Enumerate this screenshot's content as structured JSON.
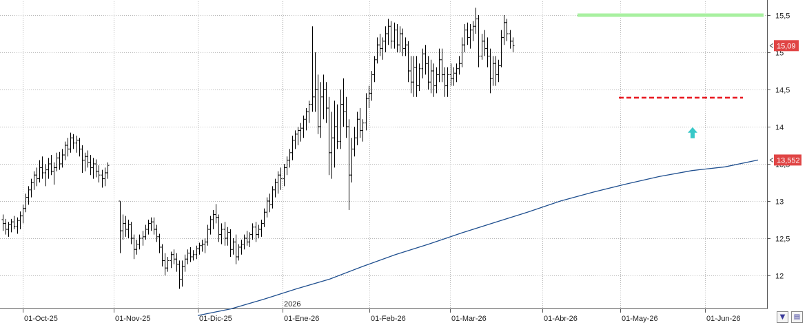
{
  "chart_data": {
    "type": "ohlc",
    "title": "",
    "xlabel": "",
    "ylabel": "",
    "ylim": [
      11.55,
      15.6
    ],
    "y_ticks": [
      12,
      12.5,
      13,
      13.5,
      14,
      14.5,
      15,
      15.5
    ],
    "y_tick_labels": [
      "12",
      "12,5",
      "13",
      "13,5",
      "14",
      "14,5",
      "15",
      "15,5"
    ],
    "x_tick_labels": [
      "01-Oct-25",
      "01-Nov-25",
      "01-Dic-25",
      "01-Ene-26",
      "01-Feb-26",
      "01-Mar-26",
      "01-Abr-26",
      "01-May-26",
      "01-Jun-26"
    ],
    "year_marker": "2026",
    "last_price_label": "15,09",
    "moving_average_label": "13,552",
    "grid": true,
    "colors": {
      "bars": "#000000",
      "moving_average": "#1f4f8f",
      "resistance": "#a8f0a0",
      "support": "#e8141c",
      "arrow": "#38c8c8",
      "badge": "#e04545",
      "grid": "#b8b8b8"
    },
    "series": [
      {
        "kind": "ohlc",
        "bars": [
          [
            12.75,
            12.82,
            12.6,
            12.7
          ],
          [
            12.7,
            12.76,
            12.55,
            12.62
          ],
          [
            12.62,
            12.72,
            12.52,
            12.68
          ],
          [
            12.68,
            12.76,
            12.58,
            12.72
          ],
          [
            12.72,
            12.8,
            12.62,
            12.66
          ],
          [
            12.66,
            12.78,
            12.56,
            12.74
          ],
          [
            12.74,
            12.86,
            12.62,
            12.8
          ],
          [
            12.8,
            12.95,
            12.7,
            12.9
          ],
          [
            12.9,
            13.1,
            12.85,
            13.05
          ],
          [
            13.05,
            13.2,
            12.95,
            13.15
          ],
          [
            13.15,
            13.3,
            13.05,
            13.25
          ],
          [
            13.25,
            13.4,
            13.15,
            13.35
          ],
          [
            13.35,
            13.45,
            13.2,
            13.3
          ],
          [
            13.3,
            13.55,
            13.25,
            13.45
          ],
          [
            13.45,
            13.6,
            13.3,
            13.38
          ],
          [
            13.38,
            13.5,
            13.2,
            13.42
          ],
          [
            13.42,
            13.58,
            13.3,
            13.5
          ],
          [
            13.5,
            13.62,
            13.35,
            13.4
          ],
          [
            13.4,
            13.52,
            13.22,
            13.45
          ],
          [
            13.45,
            13.65,
            13.4,
            13.58
          ],
          [
            13.58,
            13.66,
            13.42,
            13.5
          ],
          [
            13.5,
            13.7,
            13.45,
            13.62
          ],
          [
            13.62,
            13.8,
            13.55,
            13.75
          ],
          [
            13.75,
            13.85,
            13.6,
            13.7
          ],
          [
            13.7,
            13.92,
            13.65,
            13.85
          ],
          [
            13.85,
            13.9,
            13.7,
            13.78
          ],
          [
            13.78,
            13.88,
            13.65,
            13.82
          ],
          [
            13.82,
            13.85,
            13.6,
            13.7
          ],
          [
            13.7,
            13.75,
            13.38,
            13.55
          ],
          [
            13.55,
            13.65,
            13.4,
            13.6
          ],
          [
            13.6,
            13.68,
            13.45,
            13.52
          ],
          [
            13.52,
            13.62,
            13.35,
            13.45
          ],
          [
            13.45,
            13.58,
            13.3,
            13.5
          ],
          [
            13.5,
            13.56,
            13.32,
            13.4
          ],
          [
            13.4,
            13.48,
            13.25,
            13.35
          ],
          [
            13.35,
            13.42,
            13.18,
            13.3
          ],
          [
            13.3,
            13.45,
            13.2,
            13.38
          ],
          [
            13.38,
            13.52,
            13.3,
            13.48
          ],
          [
            13.0,
            13.0,
            12.3,
            12.6
          ],
          [
            12.6,
            12.82,
            12.48,
            12.7
          ],
          [
            12.7,
            12.8,
            12.52,
            12.62
          ],
          [
            12.62,
            12.75,
            12.5,
            12.68
          ],
          [
            12.68,
            12.72,
            12.42,
            12.5
          ],
          [
            12.5,
            12.55,
            12.22,
            12.35
          ],
          [
            12.35,
            12.48,
            12.28,
            12.42
          ],
          [
            12.42,
            12.55,
            12.35,
            12.5
          ],
          [
            12.5,
            12.6,
            12.4,
            12.52
          ],
          [
            12.52,
            12.68,
            12.48,
            12.62
          ],
          [
            12.62,
            12.75,
            12.55,
            12.7
          ],
          [
            12.7,
            12.78,
            12.6,
            12.72
          ],
          [
            12.72,
            12.78,
            12.55,
            12.62
          ],
          [
            12.62,
            12.68,
            12.45,
            12.52
          ],
          [
            12.52,
            12.56,
            12.3,
            12.38
          ],
          [
            12.38,
            12.42,
            12.12,
            12.2
          ],
          [
            12.2,
            12.3,
            12.0,
            12.1
          ],
          [
            12.1,
            12.25,
            12.05,
            12.2
          ],
          [
            12.2,
            12.32,
            12.1,
            12.28
          ],
          [
            12.28,
            12.35,
            12.15,
            12.22
          ],
          [
            12.22,
            12.3,
            12.05,
            12.15
          ],
          [
            12.15,
            12.2,
            11.82,
            11.95
          ],
          [
            11.95,
            12.2,
            11.85,
            12.12
          ],
          [
            12.12,
            12.28,
            12.05,
            12.22
          ],
          [
            12.22,
            12.35,
            12.15,
            12.3
          ],
          [
            12.3,
            12.38,
            12.18,
            12.25
          ],
          [
            12.25,
            12.34,
            12.2,
            12.28
          ],
          [
            12.28,
            12.4,
            12.22,
            12.36
          ],
          [
            12.36,
            12.44,
            12.28,
            12.4
          ],
          [
            12.4,
            12.48,
            12.32,
            12.42
          ],
          [
            12.42,
            12.5,
            12.3,
            12.45
          ],
          [
            12.45,
            12.68,
            12.4,
            12.62
          ],
          [
            12.62,
            12.8,
            12.55,
            12.75
          ],
          [
            12.75,
            12.88,
            12.62,
            12.82
          ],
          [
            12.82,
            12.96,
            12.7,
            12.78
          ],
          [
            12.78,
            12.82,
            12.45,
            12.55
          ],
          [
            12.55,
            12.7,
            12.42,
            12.62
          ],
          [
            12.62,
            12.72,
            12.4,
            12.5
          ],
          [
            12.5,
            12.65,
            12.4,
            12.58
          ],
          [
            12.58,
            12.62,
            12.25,
            12.35
          ],
          [
            12.35,
            12.5,
            12.28,
            12.45
          ],
          [
            12.45,
            12.55,
            12.15,
            12.25
          ],
          [
            12.25,
            12.42,
            12.2,
            12.38
          ],
          [
            12.38,
            12.48,
            12.28,
            12.42
          ],
          [
            12.42,
            12.55,
            12.35,
            12.5
          ],
          [
            12.5,
            12.6,
            12.4,
            12.45
          ],
          [
            12.45,
            12.58,
            12.38,
            12.55
          ],
          [
            12.55,
            12.7,
            12.48,
            12.65
          ],
          [
            12.65,
            12.72,
            12.45,
            12.55
          ],
          [
            12.55,
            12.68,
            12.5,
            12.62
          ],
          [
            12.62,
            12.75,
            12.52,
            12.7
          ],
          [
            12.7,
            12.9,
            12.65,
            12.85
          ],
          [
            12.85,
            13.05,
            12.78,
            13.0
          ],
          [
            13.0,
            13.1,
            12.85,
            12.95
          ],
          [
            12.95,
            13.2,
            12.9,
            13.15
          ],
          [
            13.15,
            13.3,
            13.05,
            13.25
          ],
          [
            13.25,
            13.4,
            13.1,
            13.35
          ],
          [
            13.35,
            13.45,
            13.15,
            13.3
          ],
          [
            13.3,
            13.5,
            13.2,
            13.45
          ],
          [
            13.45,
            13.6,
            13.35,
            13.55
          ],
          [
            13.55,
            13.7,
            13.45,
            13.65
          ],
          [
            13.65,
            13.88,
            13.55,
            13.82
          ],
          [
            13.82,
            13.95,
            13.7,
            13.9
          ],
          [
            13.9,
            14.0,
            13.75,
            13.95
          ],
          [
            13.95,
            14.05,
            13.8,
            13.98
          ],
          [
            13.98,
            14.15,
            13.85,
            14.1
          ],
          [
            14.1,
            14.25,
            13.95,
            14.2
          ],
          [
            14.2,
            14.35,
            14.05,
            14.3
          ],
          [
            14.3,
            15.35,
            14.2,
            14.4
          ],
          [
            14.4,
            15.0,
            14.2,
            14.5
          ],
          [
            14.5,
            14.7,
            13.9,
            14.0
          ],
          [
            14.0,
            14.6,
            13.85,
            14.4
          ],
          [
            14.4,
            14.7,
            14.1,
            14.5
          ],
          [
            14.5,
            14.6,
            14.05,
            14.25
          ],
          [
            14.25,
            14.4,
            13.35,
            13.65
          ],
          [
            13.65,
            14.2,
            13.3,
            13.85
          ],
          [
            13.85,
            14.35,
            13.45,
            14.0
          ],
          [
            14.0,
            14.3,
            13.7,
            13.8
          ],
          [
            13.8,
            14.5,
            13.7,
            14.3
          ],
          [
            14.3,
            14.65,
            14.0,
            14.2
          ],
          [
            14.2,
            14.4,
            13.85,
            14.0
          ],
          [
            14.0,
            14.1,
            12.88,
            13.35
          ],
          [
            13.35,
            13.85,
            13.25,
            13.7
          ],
          [
            13.7,
            14.0,
            13.6,
            13.85
          ],
          [
            13.85,
            14.2,
            13.75,
            14.1
          ],
          [
            14.1,
            14.25,
            13.85,
            13.95
          ],
          [
            13.95,
            14.1,
            13.8,
            14.05
          ],
          [
            14.05,
            14.45,
            13.95,
            14.38
          ],
          [
            14.38,
            14.55,
            14.25,
            14.45
          ],
          [
            14.45,
            14.75,
            14.35,
            14.7
          ],
          [
            14.7,
            14.95,
            14.6,
            14.9
          ],
          [
            14.9,
            15.2,
            14.85,
            15.1
          ],
          [
            15.1,
            15.25,
            14.95,
            15.05
          ],
          [
            15.05,
            15.2,
            14.9,
            15.15
          ],
          [
            15.15,
            15.35,
            15.0,
            15.25
          ],
          [
            15.25,
            15.45,
            15.1,
            15.35
          ],
          [
            15.35,
            15.42,
            15.05,
            15.15
          ],
          [
            15.15,
            15.4,
            15.05,
            15.3
          ],
          [
            15.3,
            15.38,
            15.0,
            15.1
          ],
          [
            15.1,
            15.35,
            15.0,
            15.25
          ],
          [
            15.25,
            15.32,
            14.95,
            15.05
          ],
          [
            15.05,
            15.2,
            14.95,
            15.1
          ],
          [
            15.1,
            15.15,
            14.6,
            14.75
          ],
          [
            14.75,
            14.95,
            14.45,
            14.6
          ],
          [
            14.6,
            14.95,
            14.4,
            14.8
          ],
          [
            14.8,
            14.95,
            14.4,
            14.55
          ],
          [
            14.55,
            14.85,
            14.48,
            14.78
          ],
          [
            14.78,
            15.05,
            14.65,
            14.98
          ],
          [
            14.98,
            15.1,
            14.7,
            14.85
          ],
          [
            14.85,
            14.95,
            14.5,
            14.6
          ],
          [
            14.6,
            14.9,
            14.45,
            14.75
          ],
          [
            14.75,
            14.85,
            14.4,
            14.55
          ],
          [
            14.55,
            14.8,
            14.45,
            14.7
          ],
          [
            14.7,
            15.05,
            14.6,
            14.9
          ],
          [
            14.9,
            15.05,
            14.6,
            14.7
          ],
          [
            14.7,
            14.8,
            14.4,
            14.55
          ],
          [
            14.55,
            14.8,
            14.4,
            14.7
          ],
          [
            14.7,
            14.85,
            14.55,
            14.65
          ],
          [
            14.65,
            14.8,
            14.55,
            14.72
          ],
          [
            14.72,
            14.85,
            14.6,
            14.78
          ],
          [
            14.78,
            14.95,
            14.7,
            14.85
          ],
          [
            14.85,
            15.2,
            14.8,
            15.1
          ],
          [
            15.1,
            15.38,
            15.0,
            15.3
          ],
          [
            15.3,
            15.4,
            15.1,
            15.2
          ],
          [
            15.2,
            15.38,
            15.05,
            15.3
          ],
          [
            15.3,
            15.42,
            15.15,
            15.35
          ],
          [
            15.35,
            15.6,
            15.25,
            15.45
          ],
          [
            15.45,
            15.5,
            14.8,
            14.95
          ],
          [
            14.95,
            15.25,
            14.9,
            15.15
          ],
          [
            15.15,
            15.3,
            14.95,
            15.05
          ],
          [
            15.05,
            15.2,
            14.8,
            14.95
          ],
          [
            14.95,
            15.05,
            14.45,
            14.65
          ],
          [
            14.65,
            14.95,
            14.55,
            14.85
          ],
          [
            14.85,
            14.95,
            14.55,
            14.7
          ],
          [
            14.7,
            14.9,
            14.6,
            14.82
          ],
          [
            14.82,
            15.3,
            14.8,
            15.2
          ],
          [
            15.2,
            15.5,
            15.1,
            15.4
          ],
          [
            15.4,
            15.45,
            15.15,
            15.25
          ],
          [
            15.25,
            15.3,
            15.05,
            15.15
          ],
          [
            15.15,
            15.2,
            15.0,
            15.09
          ]
        ]
      },
      {
        "kind": "moving_average",
        "x_start": 287,
        "values": [
          11.46,
          11.55,
          11.68,
          11.82,
          11.95,
          12.12,
          12.28,
          12.42,
          12.57,
          12.71,
          12.85,
          13.0,
          13.12,
          13.23,
          13.33,
          13.41,
          13.46,
          13.552
        ]
      }
    ],
    "annotations": {
      "resistance_level": 15.5,
      "support_level": 14.39,
      "arrow_value": 13.9
    }
  }
}
